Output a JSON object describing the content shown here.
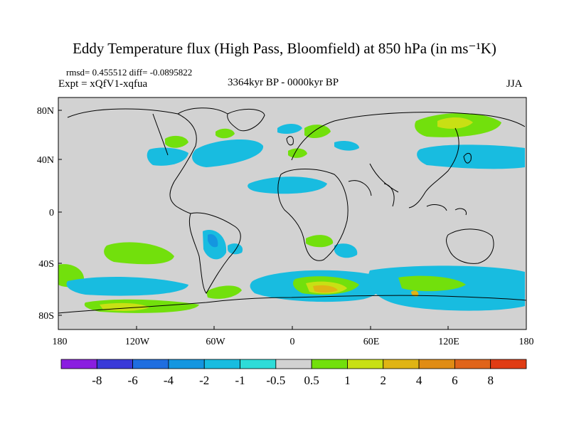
{
  "title": "Eddy Temperature flux (High Pass, Bloomfield) at 850 hPa (in ms⁻¹K)",
  "stats": "rmsd= 0.455512 diff= -0.0895822",
  "experiment": "Expt = xQfV1-xqfua",
  "period": "3364kyr BP - 0000kyr BP",
  "season": "JJA",
  "map": {
    "lon_labels": [
      "180",
      "120W",
      "60W",
      "0",
      "60E",
      "120E",
      "180"
    ],
    "lat_labels": [
      "80N",
      "40N",
      "0",
      "40S",
      "80S"
    ],
    "lon_range": [
      -180,
      180
    ],
    "lat_range": [
      -90,
      90
    ],
    "land_color": "#d2d2d2"
  },
  "colorbar": {
    "colors": [
      "#8a1ee0",
      "#3a3ad8",
      "#1f6ee0",
      "#1496e0",
      "#18bce0",
      "#2edcd8",
      "#d2d2d2",
      "#72e00c",
      "#c8e014",
      "#e0b414",
      "#e08c14",
      "#e0641a",
      "#e03c14"
    ],
    "labels": [
      "-8",
      "-6",
      "-4",
      "-2",
      "-1",
      "-0.5",
      "0.5",
      "1",
      "2",
      "4",
      "6",
      "8"
    ]
  }
}
